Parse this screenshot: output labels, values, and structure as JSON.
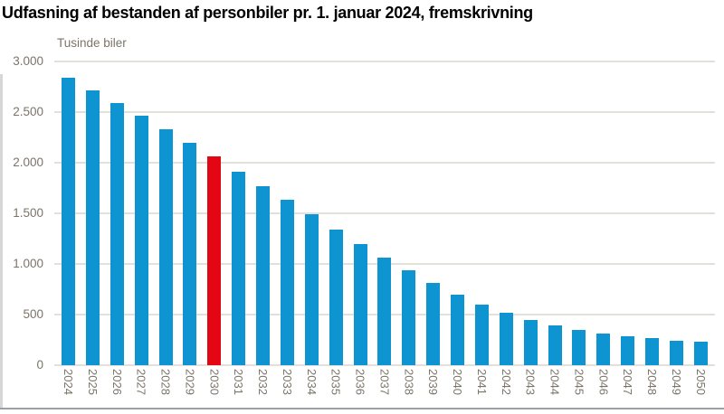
{
  "title": "Udfasning af bestanden af personbiler pr. 1. januar 2024, fremskrivning",
  "chart_data": {
    "type": "bar",
    "title": "Udfasning af bestanden af personbiler pr. 1. januar 2024, fremskrivning",
    "ylabel": "Tusinde biler",
    "xlabel": "",
    "categories": [
      "2024",
      "2025",
      "2026",
      "2027",
      "2028",
      "2029",
      "2030",
      "2031",
      "2032",
      "2033",
      "2034",
      "2035",
      "2036",
      "2037",
      "2038",
      "2039",
      "2040",
      "2041",
      "2042",
      "2043",
      "2044",
      "2045",
      "2046",
      "2047",
      "2048",
      "2049",
      "2050"
    ],
    "values": [
      2840,
      2710,
      2590,
      2460,
      2330,
      2200,
      2060,
      1910,
      1770,
      1630,
      1490,
      1340,
      1200,
      1060,
      935,
      810,
      700,
      600,
      520,
      450,
      395,
      350,
      310,
      285,
      265,
      245,
      230
    ],
    "highlight_category": "2030",
    "ylim": [
      0,
      3000
    ],
    "yticks": [
      0,
      500,
      1000,
      1500,
      2000,
      2500,
      3000
    ],
    "ytick_labels": [
      "0",
      "500",
      "1.000",
      "1.500",
      "2.000",
      "2.500",
      "3.000"
    ],
    "grid": "horizontal",
    "legend": "none",
    "colors": {
      "bar_blue": "#0f94d2",
      "bar_highlight_red": "#e30613",
      "gridline": "#e3e0d9",
      "tick_text": "#7b7569",
      "title_text": "#000000",
      "bottom_rule": "#9aa0a5"
    }
  }
}
